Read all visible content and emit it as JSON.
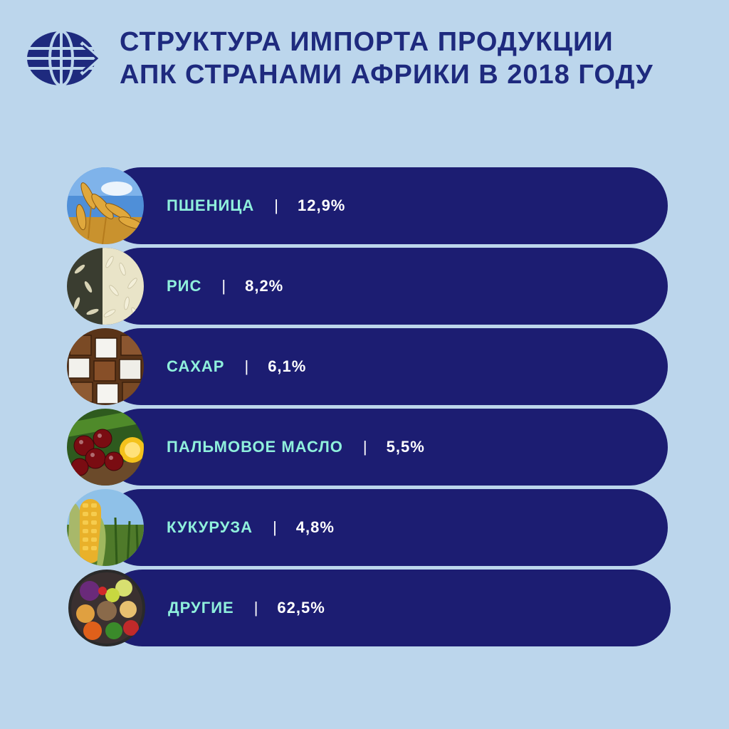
{
  "header": {
    "title_line1": "СТРУКТУРА ИМПОРТА ПРОДУКЦИИ",
    "title_line2": "АПК СТРАНАМИ АФРИКИ В 2018 ГОДУ",
    "logo_icon": "globe-arrow-icon"
  },
  "separator": "|",
  "items": [
    {
      "name": "ПШЕНИЦА",
      "value": "12,9%",
      "icon": "wheat-photo"
    },
    {
      "name": "РИС",
      "value": "8,2%",
      "icon": "rice-photo"
    },
    {
      "name": "САХАР",
      "value": "6,1%",
      "icon": "sugar-cubes-photo"
    },
    {
      "name": "ПАЛЬМОВОЕ МАСЛО",
      "value": "5,5%",
      "icon": "palm-fruit-photo"
    },
    {
      "name": "КУКУРУЗА",
      "value": "4,8%",
      "icon": "corn-photo"
    },
    {
      "name": "ДРУГИЕ",
      "value": "62,5%",
      "icon": "vegetables-bowl-photo"
    }
  ],
  "colors": {
    "background": "#bcd6ec",
    "title": "#1e2a7e",
    "pill": "#1c1d72",
    "label": "#8ff0dc",
    "value": "#ffffff"
  }
}
